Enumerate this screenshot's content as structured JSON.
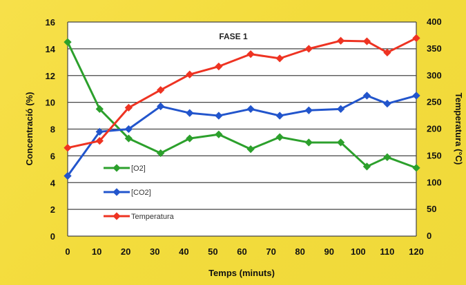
{
  "chart_data": {
    "type": "line",
    "title": "FASE 1",
    "xlabel": "Temps (minuts)",
    "ylabel_left": "Concentració (%)",
    "ylabel_right": "Temperatura (°C)",
    "xlim": [
      0,
      120
    ],
    "ylim_left": [
      0,
      16
    ],
    "ylim_right": [
      0,
      400
    ],
    "x_ticks": [
      0,
      10,
      20,
      30,
      40,
      50,
      60,
      70,
      80,
      90,
      100,
      110,
      120
    ],
    "y_ticks_left": [
      0,
      2,
      4,
      6,
      8,
      10,
      12,
      14,
      16
    ],
    "y_ticks_right": [
      0,
      50,
      100,
      150,
      200,
      250,
      300,
      350,
      400
    ],
    "grid": true,
    "legend_position": "left",
    "series": [
      {
        "name": "[O2]",
        "axis": "left",
        "color": "#2ca02c",
        "x": [
          0,
          11,
          21,
          32,
          42,
          52,
          63,
          73,
          83,
          94,
          103,
          110,
          120
        ],
        "y": [
          14.5,
          9.5,
          7.3,
          6.2,
          7.3,
          7.6,
          6.5,
          7.4,
          7.0,
          7.0,
          5.2,
          5.9,
          5.1
        ]
      },
      {
        "name": "[CO2]",
        "axis": "left",
        "color": "#2255cc",
        "x": [
          0,
          11,
          21,
          32,
          42,
          52,
          63,
          73,
          83,
          94,
          103,
          110,
          120
        ],
        "y": [
          4.5,
          7.8,
          8.0,
          9.7,
          9.2,
          9.0,
          9.5,
          9.0,
          9.4,
          9.5,
          10.5,
          9.9,
          10.5
        ]
      },
      {
        "name": "Temperatura",
        "axis": "right",
        "color": "#ee3322",
        "x": [
          0,
          11,
          21,
          32,
          42,
          52,
          63,
          73,
          83,
          94,
          103,
          110,
          120
        ],
        "y": [
          165,
          178,
          240,
          273,
          302,
          317,
          340,
          332,
          350,
          365,
          364,
          343,
          370
        ]
      }
    ]
  }
}
